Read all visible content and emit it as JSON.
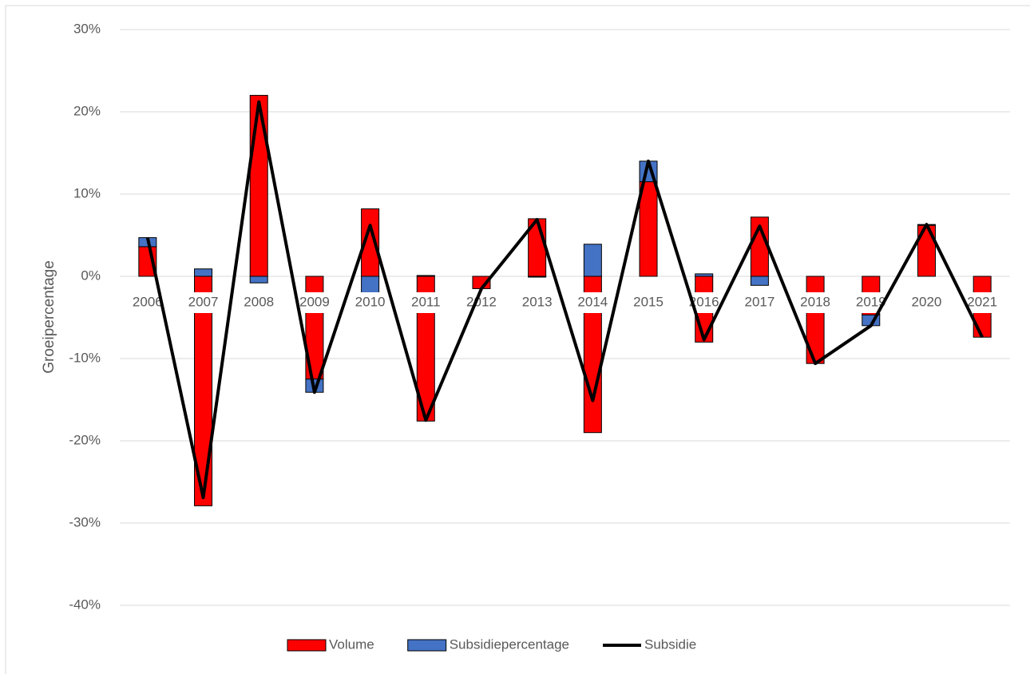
{
  "chart_data": {
    "type": "bar",
    "y_axis_label": "Groeipercentage",
    "categories": [
      "2006",
      "2007",
      "2008",
      "2009",
      "2010",
      "2011",
      "2012",
      "2013",
      "2014",
      "2015",
      "2016",
      "2017",
      "2018",
      "2019",
      "2020",
      "2021"
    ],
    "series": [
      {
        "name": "Volume",
        "type": "bar",
        "color": "#ff0000",
        "values": [
          3.6,
          -27.9,
          22.0,
          -12.5,
          8.2,
          -17.6,
          -1.5,
          7.0,
          -19.0,
          11.5,
          -8.0,
          7.2,
          -10.6,
          -4.7,
          6.2,
          -7.4
        ]
      },
      {
        "name": "Subsidiepercentage",
        "type": "bar",
        "color": "#4472c4",
        "values": [
          1.1,
          0.9,
          -0.8,
          -1.6,
          -2.0,
          0.1,
          0,
          -0.1,
          3.9,
          2.5,
          0.3,
          -1.1,
          0,
          -1.3,
          0.1,
          0
        ]
      },
      {
        "name": "Subsidie",
        "type": "line",
        "color": "#000000",
        "values": [
          4.7,
          -26.9,
          21.2,
          -14.1,
          6.2,
          -17.5,
          -1.5,
          6.9,
          -15.1,
          14.0,
          -7.7,
          6.1,
          -10.6,
          -6.0,
          6.3,
          -7.4
        ]
      }
    ],
    "ylim": [
      -40,
      30
    ],
    "yticks": [
      {
        "value": -40,
        "label": "-40%"
      },
      {
        "value": -30,
        "label": "-30%"
      },
      {
        "value": -20,
        "label": "-20%"
      },
      {
        "value": -10,
        "label": "-10%"
      },
      {
        "value": 0,
        "label": "0%"
      },
      {
        "value": 10,
        "label": "10%"
      },
      {
        "value": 20,
        "label": "20%"
      },
      {
        "value": 30,
        "label": "30%"
      }
    ],
    "grid": true,
    "legend": "bottom"
  }
}
